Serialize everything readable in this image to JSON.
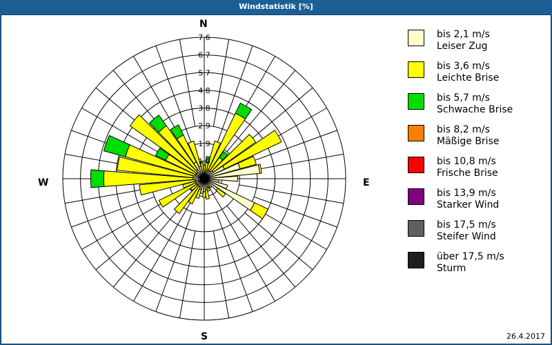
{
  "window": {
    "title": "Windstatistik [%]"
  },
  "footer": {
    "date": "26.4.2017"
  },
  "compass": {
    "N": "N",
    "E": "E",
    "S": "S",
    "W": "W"
  },
  "legend": {
    "items": [
      {
        "range": "bis 2,1 m/s",
        "name": "Leiser Zug",
        "color": "#ffffcc"
      },
      {
        "range": "bis 3,6 m/s",
        "name": "Leichte Brise",
        "color": "#ffff00"
      },
      {
        "range": "bis 5,7 m/s",
        "name": "Schwache Brise",
        "color": "#00dd00"
      },
      {
        "range": "bis 8,2 m/s",
        "name": "Mäßige Brise",
        "color": "#ff8000"
      },
      {
        "range": "bis 10,8 m/s",
        "name": "Frische Brise",
        "color": "#ff0000"
      },
      {
        "range": "bis 13,9 m/s",
        "name": "Starker Wind",
        "color": "#800080"
      },
      {
        "range": "bis 17,5 m/s",
        "name": "Steifer Wind",
        "color": "#606060"
      },
      {
        "range": "über 17,5 m/s",
        "name": "Sturm",
        "color": "#202020"
      }
    ]
  },
  "chart_data": {
    "type": "polar-stacked-bar",
    "title": "Windstatistik [%]",
    "radial_ticks": [
      "1,0",
      "1,9",
      "2,9",
      "3,8",
      "4,8",
      "5,7",
      "6,7",
      "7,6"
    ],
    "radial_max": 7.6,
    "sectors_deg": [
      0,
      10,
      20,
      30,
      40,
      50,
      60,
      70,
      80,
      90,
      100,
      110,
      120,
      130,
      140,
      150,
      160,
      170,
      180,
      190,
      200,
      210,
      220,
      230,
      240,
      250,
      260,
      270,
      280,
      290,
      300,
      310,
      320,
      330,
      340,
      350
    ],
    "series": [
      {
        "name": "bis 2,1 m/s",
        "values": [
          0.3,
          0.4,
          0.5,
          0.5,
          0.5,
          0.6,
          1.2,
          2.0,
          3.0,
          1.8,
          0.8,
          1.3,
          3.0,
          0.9,
          0.6,
          0.5,
          0.5,
          0.6,
          0.7,
          0.8,
          0.6,
          0.5,
          0.5,
          0.5,
          0.5,
          0.5,
          0.5,
          0.6,
          0.6,
          0.5,
          0.5,
          0.5,
          0.6,
          1.0,
          0.7,
          0.3
        ]
      },
      {
        "name": "bis 3,6 m/s",
        "values": [
          0.4,
          0.5,
          1.6,
          3.4,
          0.9,
          2.8,
          3.4,
          0.9,
          0.1,
          0.0,
          0.0,
          0.0,
          0.8,
          0.5,
          0.0,
          0.0,
          0.2,
          0.5,
          0.3,
          0.0,
          0.5,
          1.0,
          1.8,
          0.4,
          2.2,
          0.7,
          3.0,
          4.8,
          4.1,
          3.9,
          1.8,
          4.4,
          2.9,
          1.6,
          1.4,
          0.6
        ]
      },
      {
        "name": "bis 5,7 m/s",
        "values": [
          0.0,
          0.3,
          0.0,
          0.6,
          0.4,
          0.0,
          0.0,
          0.0,
          0.0,
          0.0,
          0.0,
          0.0,
          0.0,
          0.0,
          0.0,
          0.0,
          0.0,
          0.0,
          0.0,
          0.0,
          0.0,
          0.0,
          0.0,
          0.0,
          0.0,
          0.0,
          0.0,
          0.7,
          0.0,
          1.2,
          0.6,
          0.0,
          0.7,
          0.6,
          0.0,
          0.0
        ]
      },
      {
        "name": "bis 8,2 m/s",
        "values": []
      },
      {
        "name": "bis 10,8 m/s",
        "values": []
      },
      {
        "name": "bis 13,9 m/s",
        "values": []
      },
      {
        "name": "bis 17,5 m/s",
        "values": []
      },
      {
        "name": "über 17,5 m/s",
        "values": []
      }
    ],
    "grid": true,
    "legend_position": "right"
  }
}
